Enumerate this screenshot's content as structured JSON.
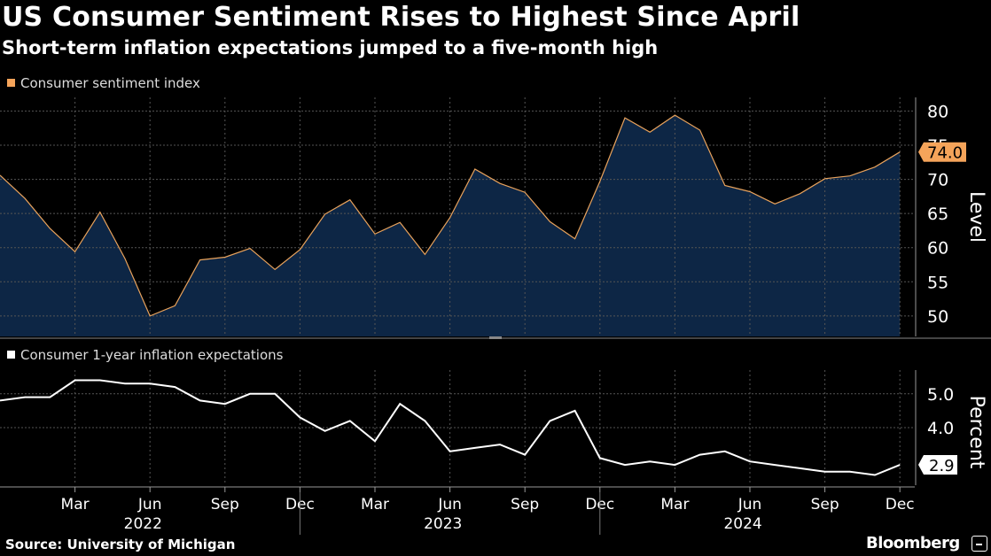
{
  "header": {
    "title": "US Consumer Sentiment Rises to Highest Since April",
    "subtitle": "Short-term inflation expectations jumped to a five-month high"
  },
  "footer": {
    "source": "Source: University of Michigan",
    "brand": "Bloomberg"
  },
  "colors": {
    "sentiment_line": "#e8a25c",
    "sentiment_fill": "#0d2645",
    "inflation_line": "#ffffff",
    "grid": "#555555",
    "label_box_sentiment": "#f5a45a"
  },
  "chart_data": [
    {
      "type": "area",
      "series": [
        {
          "name": "Consumer sentiment index",
          "values": [
            70.6,
            67.2,
            62.8,
            59.4,
            65.2,
            58.4,
            50.0,
            51.5,
            58.2,
            58.6,
            59.9,
            56.8,
            59.7,
            64.9,
            67.0,
            62.0,
            63.7,
            59.0,
            64.4,
            71.5,
            69.4,
            68.1,
            63.8,
            61.3,
            69.7,
            79.0,
            76.9,
            79.4,
            77.2,
            69.1,
            68.2,
            66.4,
            67.9,
            70.1,
            70.5,
            71.8,
            74.0
          ]
        }
      ],
      "x": [
        "2021-12",
        "2022-01",
        "2022-02",
        "2022-03",
        "2022-04",
        "2022-05",
        "2022-06",
        "2022-07",
        "2022-08",
        "2022-09",
        "2022-10",
        "2022-11",
        "2022-12",
        "2023-01",
        "2023-02",
        "2023-03",
        "2023-04",
        "2023-05",
        "2023-06",
        "2023-07",
        "2023-08",
        "2023-09",
        "2023-10",
        "2023-11",
        "2023-12",
        "2024-01",
        "2024-02",
        "2024-03",
        "2024-04",
        "2024-05",
        "2024-06",
        "2024-07",
        "2024-08",
        "2024-09",
        "2024-10",
        "2024-11",
        "2024-12"
      ],
      "ylabel": "Level",
      "ylim": [
        47,
        82
      ],
      "yticks": [
        "50",
        "55",
        "60",
        "65",
        "70",
        "75",
        "80"
      ],
      "last_value_label": "74.0",
      "grid": true
    },
    {
      "type": "line",
      "series": [
        {
          "name": "Consumer 1-year inflation expectations",
          "values": [
            4.8,
            4.9,
            4.9,
            5.4,
            5.4,
            5.3,
            5.3,
            5.2,
            4.8,
            4.7,
            5.0,
            5.0,
            4.3,
            3.9,
            4.2,
            3.6,
            4.7,
            4.2,
            3.3,
            3.4,
            3.5,
            3.2,
            4.2,
            4.5,
            3.1,
            2.9,
            3.0,
            2.9,
            3.2,
            3.3,
            3.0,
            2.9,
            2.8,
            2.7,
            2.7,
            2.6,
            2.9
          ]
        }
      ],
      "ylabel": "Percent",
      "ylim": [
        2.3,
        5.7
      ],
      "yticks": [
        "4.0",
        "5.0"
      ],
      "last_value_label": "2.9",
      "grid": true,
      "xtick_months": [
        "Mar",
        "Jun",
        "Sep",
        "Dec",
        "Mar",
        "Jun",
        "Sep",
        "Dec",
        "Mar",
        "Jun",
        "Sep",
        "Dec"
      ],
      "xtick_years": [
        "2022",
        "2023",
        "2024"
      ]
    }
  ]
}
